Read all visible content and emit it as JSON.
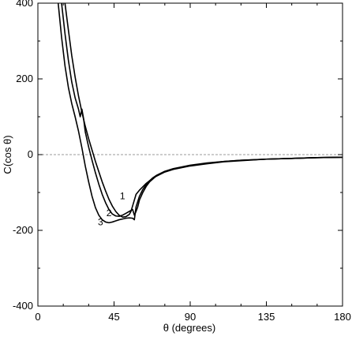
{
  "chart_data": {
    "type": "line",
    "title": "",
    "xlabel": "θ (degrees)",
    "ylabel": "C(cos θ)",
    "xlim": [
      0,
      180
    ],
    "ylim": [
      -400,
      400
    ],
    "xticks": [
      0,
      45,
      90,
      135,
      180
    ],
    "yticks": [
      -400,
      -200,
      0,
      200,
      400
    ],
    "xtick_labels": [
      "0",
      "45",
      "90",
      "135",
      "180"
    ],
    "ytick_labels": [
      "-400",
      "-200",
      "0",
      "200",
      "400"
    ],
    "grid": false,
    "zero_line": {
      "y": 0,
      "style": "dashed",
      "color": "#999999"
    },
    "line_color": "#000000",
    "series": [
      {
        "name": "1",
        "x": [
          16,
          18,
          20,
          22,
          24,
          26,
          28,
          30,
          32,
          34,
          36,
          38,
          40,
          42,
          44,
          46,
          48,
          50,
          52,
          54,
          55,
          56,
          57,
          58,
          60,
          62,
          64,
          66,
          68,
          70,
          75,
          80,
          90,
          100,
          110,
          120,
          135,
          150,
          165,
          180
        ],
        "y": [
          400,
          330,
          262,
          205,
          155,
          112,
          75,
          42,
          12,
          -18,
          -45,
          -72,
          -96,
          -118,
          -136,
          -150,
          -160,
          -165,
          -164,
          -158,
          -150,
          -135,
          -120,
          -105,
          -94,
          -85,
          -76,
          -69,
          -63,
          -57,
          -46,
          -39,
          -30,
          -24,
          -19,
          -16,
          -12,
          -10,
          -8,
          -7
        ]
      },
      {
        "name": "2",
        "x": [
          14,
          16,
          18,
          20,
          22,
          24,
          25,
          26,
          27,
          28,
          30,
          32,
          34,
          36,
          38,
          40,
          42,
          44,
          46,
          48,
          50,
          52,
          54,
          56,
          57,
          58,
          59,
          60,
          62,
          64,
          66,
          68,
          70,
          75,
          80,
          90,
          100,
          110,
          120,
          135,
          150,
          165,
          180
        ],
        "y": [
          400,
          320,
          250,
          192,
          150,
          120,
          100,
          120,
          95,
          60,
          20,
          -15,
          -48,
          -78,
          -105,
          -127,
          -145,
          -157,
          -162,
          -163,
          -160,
          -155,
          -150,
          -145,
          -160,
          -150,
          -138,
          -120,
          -100,
          -84,
          -72,
          -64,
          -56,
          -45,
          -38,
          -29,
          -23,
          -18,
          -15,
          -12,
          -10,
          -8,
          -7
        ]
      },
      {
        "name": "3",
        "x": [
          12,
          14,
          16,
          18,
          20,
          22,
          24,
          26,
          28,
          30,
          32,
          34,
          36,
          38,
          40,
          42,
          44,
          46,
          48,
          50,
          52,
          54,
          56,
          57,
          58,
          60,
          62,
          64,
          66,
          68,
          70,
          75,
          80,
          90,
          100,
          110,
          120,
          135,
          150,
          165,
          180
        ],
        "y": [
          400,
          310,
          235,
          178,
          135,
          100,
          62,
          18,
          -30,
          -72,
          -110,
          -140,
          -160,
          -172,
          -178,
          -180,
          -178,
          -175,
          -172,
          -170,
          -168,
          -167,
          -168,
          -172,
          -138,
          -110,
          -92,
          -79,
          -69,
          -61,
          -55,
          -44,
          -37,
          -28,
          -22,
          -18,
          -15,
          -12,
          -10,
          -8,
          -7
        ]
      }
    ],
    "curve_labels": [
      {
        "text": "1",
        "x": 50,
        "y": -118
      },
      {
        "text": "2",
        "x": 42,
        "y": -163
      },
      {
        "text": "3",
        "x": 37,
        "y": -186
      }
    ]
  }
}
